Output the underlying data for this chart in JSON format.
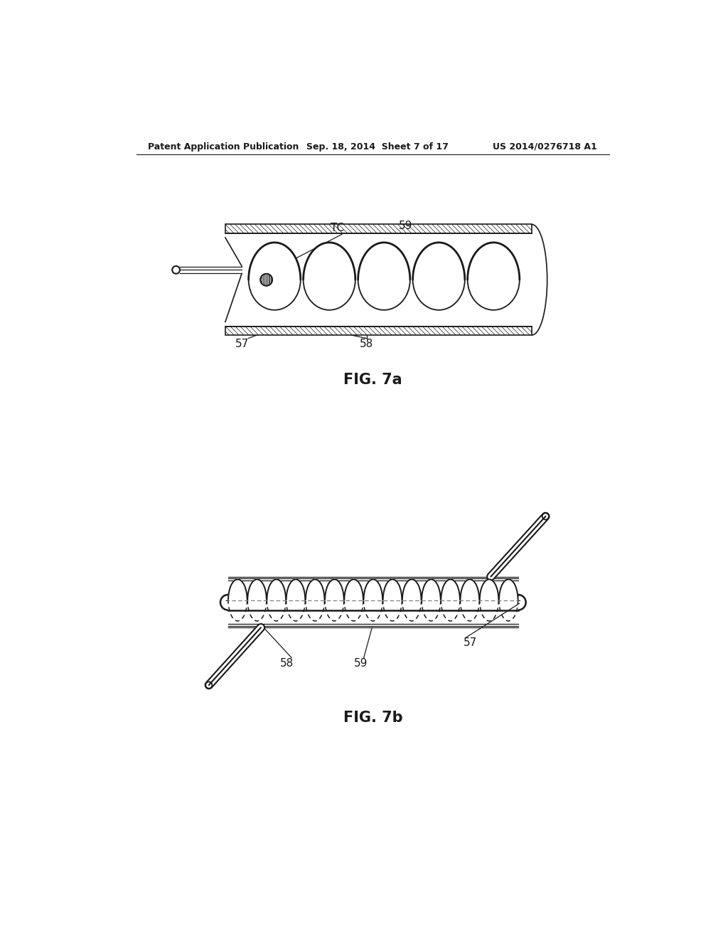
{
  "bg_color": "#ffffff",
  "line_color": "#1a1a1a",
  "header_text": "Patent Application Publication",
  "header_date": "Sep. 18, 2014  Sheet 7 of 17",
  "header_patent": "US 2014/0276718 A1",
  "fig7a_label": "FIG. 7a",
  "fig7b_label": "FIG. 7b"
}
